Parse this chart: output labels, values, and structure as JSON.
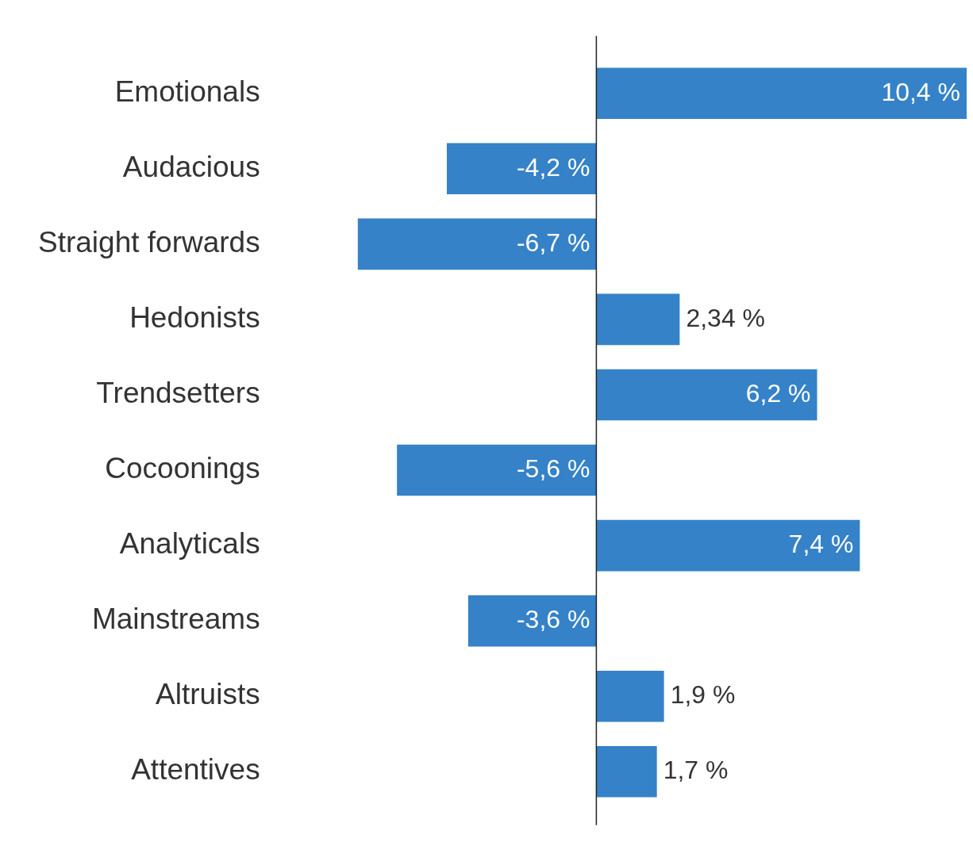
{
  "chart_data": {
    "type": "bar",
    "orientation": "horizontal",
    "categories": [
      "Emotionals",
      "Audacious",
      "Straight forwards",
      "Hedonists",
      "Trendsetters",
      "Cocoonings",
      "Analyticals",
      "Mainstreams",
      "Altruists",
      "Attentives"
    ],
    "values": [
      10.4,
      -4.2,
      -6.7,
      2.34,
      6.2,
      -5.6,
      7.4,
      -3.6,
      1.9,
      1.7
    ],
    "value_labels": [
      "10,4 %",
      "-4,2 %",
      "-6,7 %",
      "2,34 %",
      "6,2 %",
      "-5,6 %",
      "7,4 %",
      "-3,6 %",
      "1,9 %",
      "1,7 %"
    ],
    "color": "#3582c8"
  }
}
